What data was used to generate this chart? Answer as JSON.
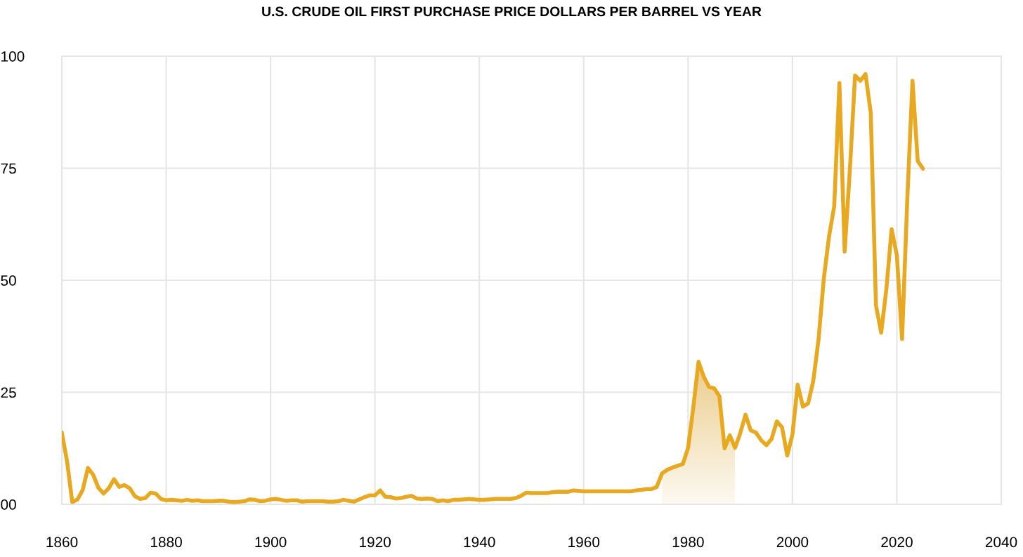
{
  "chart_data": {
    "type": "line",
    "title": "U.S. CRUDE OIL FIRST PURCHASE PRICE DOLLARS PER BARREL VS YEAR",
    "x": [
      1860,
      1861,
      1862,
      1863,
      1864,
      1865,
      1866,
      1867,
      1868,
      1869,
      1870,
      1871,
      1872,
      1873,
      1874,
      1875,
      1876,
      1877,
      1878,
      1879,
      1880,
      1881,
      1882,
      1883,
      1884,
      1885,
      1886,
      1887,
      1888,
      1889,
      1890,
      1891,
      1892,
      1893,
      1894,
      1895,
      1896,
      1897,
      1898,
      1899,
      1900,
      1901,
      1902,
      1903,
      1904,
      1905,
      1906,
      1907,
      1908,
      1909,
      1910,
      1911,
      1912,
      1913,
      1914,
      1915,
      1916,
      1917,
      1918,
      1919,
      1920,
      1921,
      1922,
      1923,
      1924,
      1925,
      1926,
      1927,
      1928,
      1929,
      1930,
      1931,
      1932,
      1933,
      1934,
      1935,
      1936,
      1937,
      1938,
      1939,
      1940,
      1941,
      1942,
      1943,
      1944,
      1945,
      1946,
      1947,
      1948,
      1949,
      1950,
      1951,
      1952,
      1953,
      1954,
      1955,
      1956,
      1957,
      1958,
      1959,
      1960,
      1961,
      1962,
      1963,
      1964,
      1965,
      1966,
      1967,
      1968,
      1969,
      1970,
      1971,
      1972,
      1973,
      1974,
      1975,
      1976,
      1977,
      1978,
      1979,
      1980,
      1981,
      1982,
      1983,
      1984,
      1985,
      1986,
      1987,
      1988,
      1989,
      1990,
      1991,
      1992,
      1993,
      1994,
      1995,
      1996,
      1997,
      1998,
      1999,
      2000,
      2001,
      2002,
      2003,
      2004,
      2005,
      2006,
      2007,
      2008,
      2009,
      2010,
      2011,
      2012,
      2013,
      2014,
      2015,
      2016,
      2017,
      2018,
      2019,
      2020,
      2021,
      2022,
      2023,
      2024,
      2025
    ],
    "series": [
      {
        "color": "#e8a820",
        "values": [
          16.0,
          9.6,
          0.5,
          1.1,
          3.2,
          8.1,
          6.6,
          3.7,
          2.4,
          3.6,
          5.6,
          3.9,
          4.3,
          3.6,
          1.8,
          1.2,
          1.4,
          2.6,
          2.4,
          1.2,
          0.9,
          1.0,
          0.9,
          0.8,
          1.0,
          0.8,
          0.9,
          0.7,
          0.7,
          0.7,
          0.8,
          0.8,
          0.6,
          0.5,
          0.6,
          0.7,
          1.1,
          1.0,
          0.7,
          0.8,
          1.1,
          1.2,
          1.0,
          0.8,
          0.9,
          0.9,
          0.6,
          0.7,
          0.7,
          0.7,
          0.7,
          0.6,
          0.6,
          0.7,
          1.0,
          0.8,
          0.6,
          1.1,
          1.6,
          2.0,
          2.0,
          3.1,
          1.7,
          1.6,
          1.3,
          1.4,
          1.7,
          1.9,
          1.3,
          1.2,
          1.3,
          1.2,
          0.7,
          0.9,
          0.7,
          1.0,
          1.0,
          1.1,
          1.2,
          1.1,
          1.0,
          1.0,
          1.1,
          1.2,
          1.2,
          1.2,
          1.2,
          1.4,
          1.9,
          2.6,
          2.5,
          2.5,
          2.5,
          2.5,
          2.7,
          2.8,
          2.8,
          2.8,
          3.1,
          3.0,
          2.9,
          2.9,
          2.9,
          2.9,
          2.9,
          2.9,
          2.9,
          2.9,
          2.9,
          2.9,
          3.1,
          3.2,
          3.4,
          3.4,
          3.9,
          6.9,
          7.7,
          8.2,
          8.6,
          9.0,
          12.6,
          21.6,
          31.8,
          28.5,
          26.2,
          25.9,
          24.1,
          12.5,
          15.4,
          12.6,
          15.9,
          20.0,
          16.5,
          16.0,
          14.3,
          13.2,
          14.6,
          18.5,
          17.2,
          10.9,
          15.6,
          26.7,
          21.8,
          22.5,
          27.6,
          36.8,
          50.3,
          59.7,
          66.5,
          94.0,
          56.4,
          74.7,
          95.7,
          94.5,
          96.0,
          87.4,
          44.4,
          38.3,
          48.1,
          61.4,
          55.6,
          36.9,
          68.0,
          94.5,
          76.6,
          74.9
        ]
      }
    ],
    "bands": [
      {
        "axis": "x",
        "from": 1975,
        "to": 1989,
        "color": "#e3b85a"
      }
    ],
    "xlim": [
      1860,
      2040
    ],
    "xticks": [
      1860,
      1880,
      1900,
      1920,
      1940,
      1960,
      1980,
      2000,
      2020,
      2040
    ],
    "ylim": [
      0,
      100
    ],
    "yticks": [
      {
        "value": 0,
        "label": "00"
      },
      25,
      50,
      75,
      100
    ],
    "grid": true
  }
}
